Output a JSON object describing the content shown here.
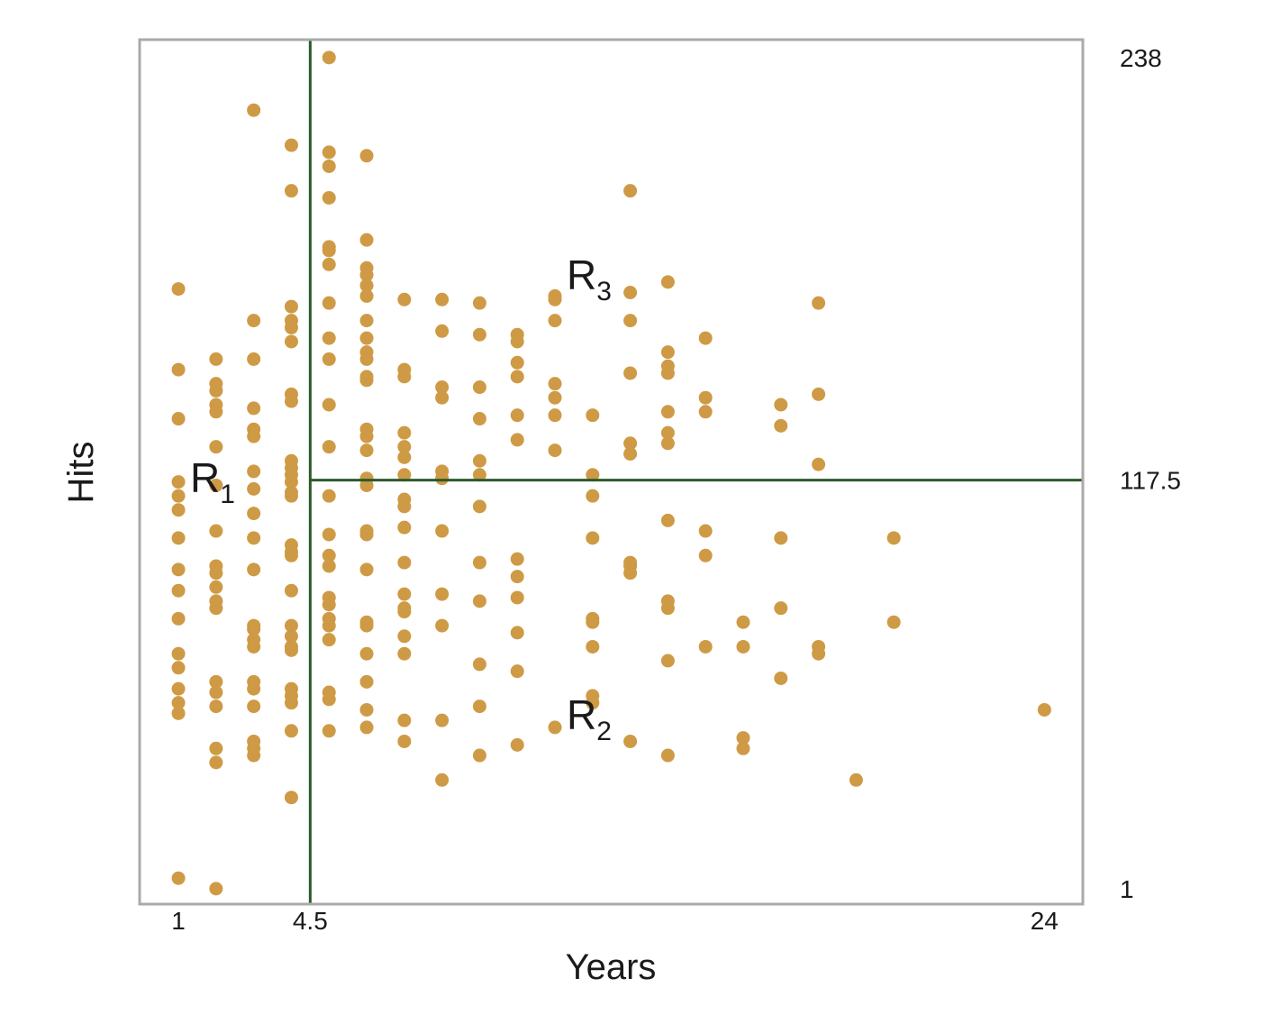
{
  "chart_data": {
    "type": "scatter",
    "x_label": "Years",
    "y_label": "Hits",
    "xlim": [
      -0.03,
      25.02
    ],
    "ylim": [
      -3.4,
      243.1
    ],
    "xticks": [
      1,
      4.5,
      24
    ],
    "yticks": [
      1,
      117.5,
      238
    ],
    "split_x": 4.5,
    "split_y": 117.5,
    "color": "#cf9a45",
    "split_color": "#2b5a2b",
    "annotations": [
      {
        "text": "R",
        "subscript": "1"
      },
      {
        "text": "R",
        "subscript": "2"
      },
      {
        "text": "R",
        "subscript": "3"
      }
    ],
    "x": [
      1,
      1,
      1,
      1,
      1,
      1,
      1,
      1,
      1,
      1,
      1,
      1,
      1,
      1,
      1,
      1,
      2,
      2,
      2,
      2,
      2,
      2,
      2,
      2,
      2,
      2,
      2,
      2,
      2,
      2,
      2,
      2,
      2,
      2,
      2,
      3,
      3,
      3,
      3,
      3,
      3,
      3,
      3,
      3,
      3,
      3,
      3,
      3,
      3,
      3,
      3,
      3,
      3,
      3,
      3,
      3,
      4,
      4,
      4,
      4,
      4,
      4,
      4,
      4,
      4,
      4,
      4,
      4,
      4,
      4,
      4,
      4,
      4,
      4,
      4,
      4,
      4,
      4,
      4,
      4,
      4,
      4,
      4,
      5,
      5,
      5,
      5,
      5,
      5,
      5,
      5,
      5,
      5,
      5,
      5,
      5,
      5,
      5,
      5,
      5,
      5,
      5,
      5,
      5,
      5,
      5,
      5,
      6,
      6,
      6,
      6,
      6,
      6,
      6,
      6,
      6,
      6,
      6,
      6,
      6,
      6,
      6,
      6,
      6,
      6,
      6,
      6,
      6,
      6,
      6,
      6,
      6,
      6,
      7,
      7,
      7,
      7,
      7,
      7,
      7,
      7,
      7,
      7,
      7,
      7,
      7,
      7,
      7,
      7,
      7,
      7,
      8,
      8,
      8,
      8,
      8,
      8,
      8,
      8,
      8,
      8,
      8,
      9,
      9,
      9,
      9,
      9,
      9,
      9,
      9,
      9,
      9,
      9,
      9,
      10,
      10,
      10,
      10,
      10,
      10,
      10,
      10,
      10,
      10,
      10,
      10,
      11,
      11,
      11,
      11,
      11,
      11,
      11,
      11,
      12,
      12,
      12,
      12,
      12,
      12,
      12,
      12,
      12,
      13,
      13,
      13,
      13,
      13,
      13,
      13,
      13,
      13,
      13,
      14,
      14,
      14,
      14,
      14,
      14,
      14,
      14,
      14,
      14,
      14,
      14,
      15,
      15,
      15,
      15,
      15,
      15,
      16,
      16,
      16,
      16,
      17,
      17,
      17,
      17,
      17,
      18,
      18,
      18,
      18,
      18,
      19,
      20,
      20,
      24
    ],
    "y": [
      172,
      149,
      135,
      117,
      113,
      109,
      101,
      92,
      86,
      78,
      68,
      64,
      58,
      54,
      51,
      4,
      152,
      145,
      143,
      139,
      137,
      127,
      116,
      103,
      93,
      91,
      87,
      83,
      81,
      60,
      57,
      53,
      41,
      37,
      1,
      223,
      163,
      152,
      138,
      132,
      130,
      120,
      115,
      108,
      101,
      92,
      76,
      75,
      72,
      70,
      60,
      58,
      53,
      43,
      41,
      39,
      213,
      200,
      167,
      163,
      161,
      157,
      142,
      140,
      123,
      121,
      119,
      117,
      114,
      113,
      99,
      97,
      96,
      86,
      76,
      73,
      70,
      69,
      58,
      56,
      54,
      46,
      27,
      238,
      211,
      207,
      198,
      184,
      183,
      179,
      168,
      158,
      152,
      139,
      127,
      113,
      102,
      96,
      93,
      84,
      82,
      78,
      76,
      72,
      57,
      55,
      46,
      210,
      186,
      178,
      176,
      173,
      170,
      163,
      158,
      154,
      152,
      147,
      146,
      132,
      130,
      126,
      118,
      116,
      103,
      102,
      92,
      77,
      76,
      68,
      60,
      52,
      47,
      169,
      149,
      147,
      131,
      127,
      124,
      119,
      112,
      110,
      104,
      94,
      85,
      81,
      80,
      73,
      68,
      49,
      43,
      169,
      160,
      144,
      141,
      120,
      118,
      103,
      85,
      76,
      49,
      32,
      168,
      159,
      144,
      135,
      123,
      119,
      110,
      94,
      83,
      65,
      53,
      39,
      159,
      157,
      151,
      147,
      136,
      129,
      95,
      90,
      84,
      74,
      63,
      42,
      170,
      169,
      163,
      145,
      141,
      136,
      126,
      47,
      136,
      119,
      113,
      101,
      78,
      77,
      70,
      56,
      54,
      200,
      171,
      163,
      148,
      128,
      125,
      94,
      93,
      91,
      43,
      174,
      154,
      150,
      148,
      137,
      131,
      128,
      106,
      83,
      81,
      66,
      39,
      158,
      141,
      137,
      103,
      96,
      70,
      77,
      70,
      44,
      41,
      139,
      133,
      101,
      81,
      61,
      168,
      142,
      122,
      70,
      68,
      32,
      101,
      77,
      52
    ]
  }
}
